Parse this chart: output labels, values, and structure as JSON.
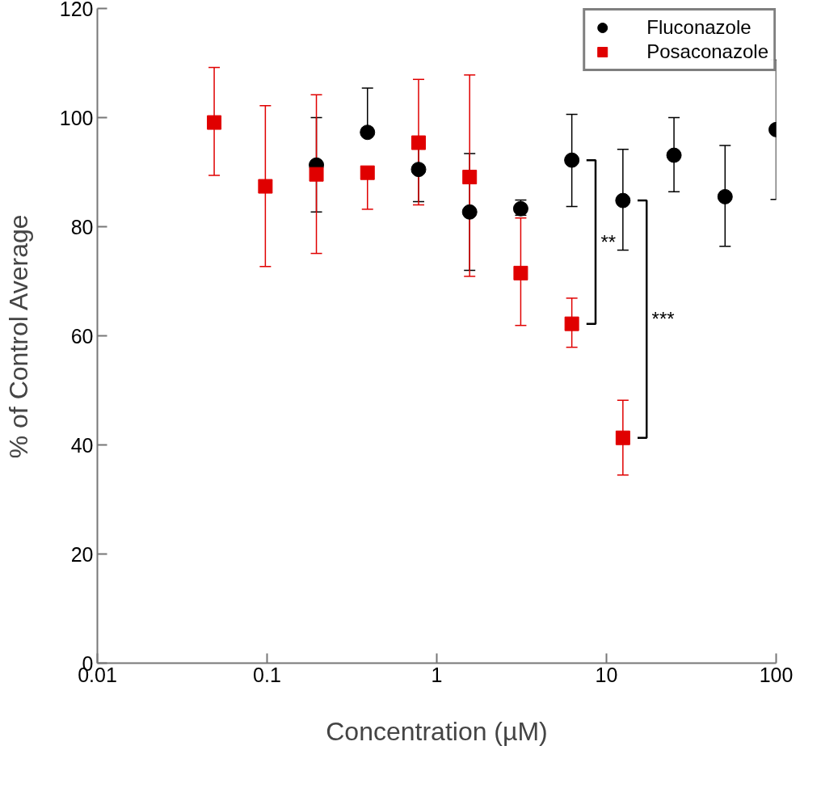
{
  "chart_data": {
    "type": "scatter",
    "xlabel": "Concentration (µM)",
    "ylabel": "% of Control Average",
    "log": "x",
    "xlim": [
      0.01,
      100
    ],
    "xticks": [
      0.01,
      0.1,
      1,
      10,
      100
    ],
    "ylim": [
      0,
      120
    ],
    "yticks": [
      0,
      20,
      40,
      60,
      80,
      100,
      120
    ],
    "grid": false,
    "legend": "top right",
    "series": [
      {
        "name": "Fluconazole",
        "color": "#000000",
        "marker": "circle",
        "x": [
          0.1953,
          0.3906,
          0.7813,
          1.5625,
          3.125,
          6.25,
          12.5,
          25,
          50,
          100
        ],
        "values": [
          91.3,
          97.3,
          90.5,
          82.7,
          83.3,
          92.2,
          84.8,
          93.1,
          85.5,
          97.8
        ],
        "errors": [
          [
            82.7,
            100.0
          ],
          [
            97.3,
            105.4
          ],
          [
            84.6,
            96.4
          ],
          [
            72.0,
            93.4
          ],
          [
            82.1,
            84.9
          ],
          [
            83.7,
            100.6
          ],
          [
            75.7,
            94.2
          ],
          [
            86.4,
            100.0
          ],
          [
            76.4,
            94.9
          ],
          [
            85.0,
            110.6
          ]
        ]
      },
      {
        "name": "Posaconazole",
        "color": "#e00000",
        "marker": "square",
        "x": [
          0.0488,
          0.0977,
          0.1953,
          0.3906,
          0.7813,
          1.5625,
          3.125,
          6.25,
          12.5
        ],
        "values": [
          99.1,
          87.4,
          89.6,
          89.9,
          95.4,
          89.1,
          71.5,
          62.2,
          41.3
        ],
        "errors": [
          [
            89.4,
            109.2
          ],
          [
            72.7,
            102.2
          ],
          [
            75.1,
            104.2
          ],
          [
            83.2,
            89.9
          ],
          [
            84.0,
            107.0
          ],
          [
            70.9,
            107.8
          ],
          [
            61.9,
            81.6
          ],
          [
            57.9,
            66.9
          ],
          [
            34.5,
            48.2
          ]
        ]
      }
    ],
    "annotations": [
      "**",
      "***"
    ]
  }
}
